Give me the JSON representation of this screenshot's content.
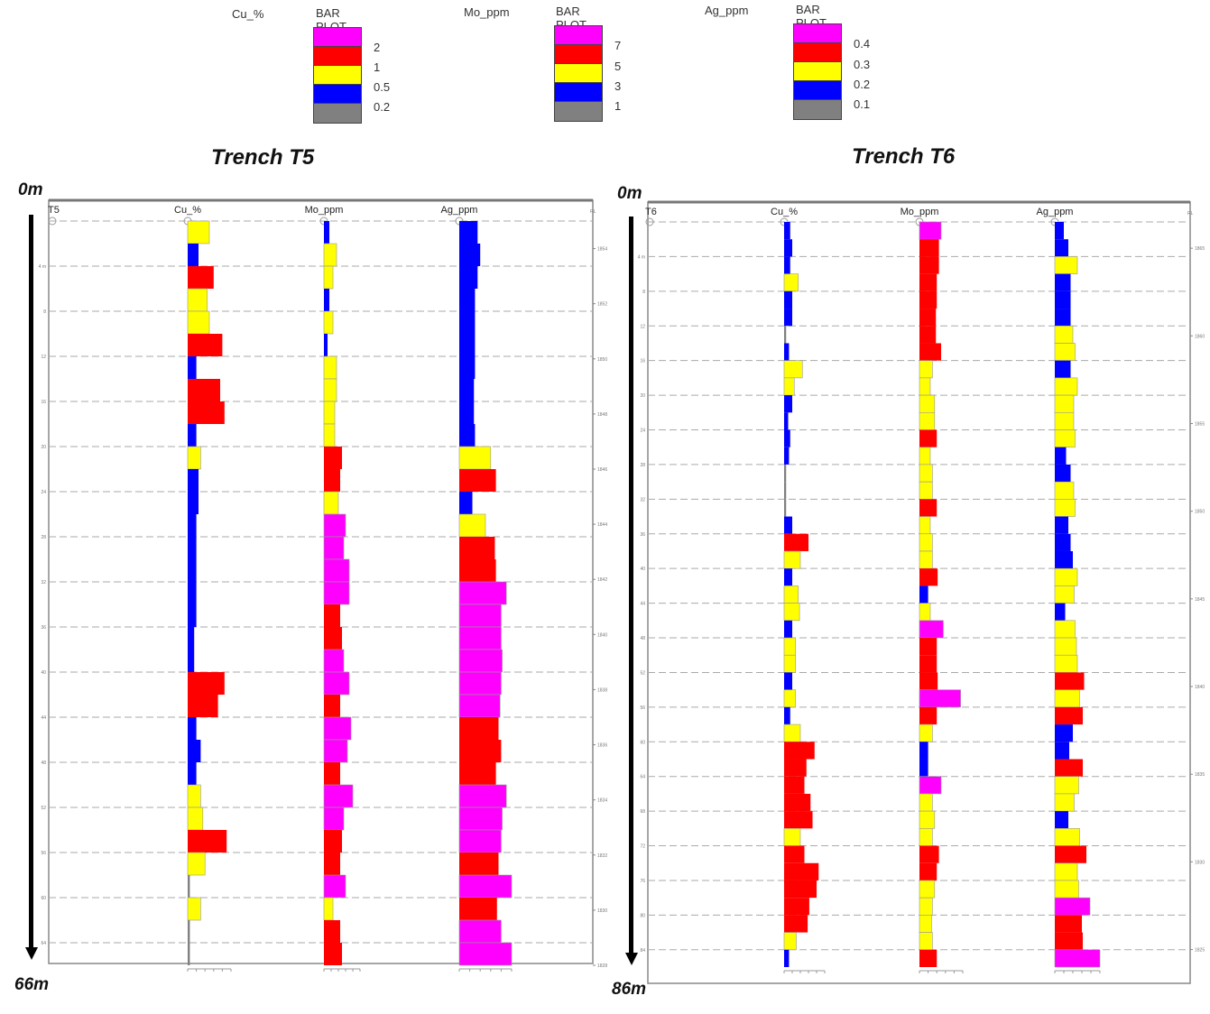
{
  "legend": {
    "bar_plot_label": "BAR PLOT",
    "items": [
      {
        "variable": "Cu_%",
        "thresholds": [
          "2",
          "1",
          "0.5",
          "0.2"
        ]
      },
      {
        "variable": "Mo_ppm",
        "thresholds": [
          "7",
          "5",
          "3",
          "1"
        ]
      },
      {
        "variable": "Ag_ppm",
        "thresholds": [
          "0.4",
          "0.3",
          "0.2",
          "0.1"
        ]
      }
    ],
    "colors": [
      "#ff00ff",
      "#ff0000",
      "#ffff00",
      "#0000ff",
      "#808080"
    ]
  },
  "chart_data": [
    {
      "type": "bar",
      "title": "Trench T5",
      "trench_id": "T5",
      "depth_top_label": "0m",
      "depth_bottom_label": "66m",
      "interval_m": 2,
      "depth_range": [
        0,
        66
      ],
      "depth_ticks": [
        4,
        8,
        12,
        16,
        20,
        24,
        28,
        32,
        36,
        40,
        44,
        48,
        52,
        56,
        60,
        64
      ],
      "rl_ticks": [
        1854,
        1852,
        1850,
        1848,
        1846,
        1844,
        1842,
        1840,
        1838,
        1836,
        1834,
        1832,
        1830,
        1828
      ],
      "rl_label": "RL",
      "class_colors": [
        "#808080",
        "#0000ff",
        "#ffff00",
        "#ff0000",
        "#ff00ff"
      ],
      "series": [
        {
          "name": "Cu_%",
          "classes": [
            2,
            1,
            3,
            2,
            2,
            3,
            1,
            3,
            3,
            1,
            2,
            1,
            1,
            1,
            1,
            1,
            1,
            1,
            1,
            1,
            3,
            3,
            1,
            1,
            1,
            2,
            2,
            3,
            2,
            0,
            2,
            0,
            0
          ],
          "widths": [
            0.5,
            0.25,
            0.6,
            0.45,
            0.5,
            0.8,
            0.2,
            0.75,
            0.85,
            0.2,
            0.3,
            0.25,
            0.25,
            0.2,
            0.2,
            0.2,
            0.2,
            0.2,
            0.15,
            0.15,
            0.85,
            0.7,
            0.2,
            0.3,
            0.2,
            0.3,
            0.35,
            0.9,
            0.4,
            0.05,
            0.3,
            0.05,
            0.05
          ]
        },
        {
          "name": "Mo_ppm",
          "classes": [
            1,
            2,
            2,
            1,
            2,
            1,
            2,
            2,
            2,
            2,
            3,
            3,
            2,
            4,
            4,
            4,
            4,
            3,
            3,
            4,
            4,
            3,
            4,
            4,
            3,
            4,
            4,
            3,
            3,
            4,
            2,
            3,
            3
          ],
          "widths": [
            0.15,
            0.35,
            0.25,
            0.15,
            0.25,
            0.1,
            0.35,
            0.35,
            0.3,
            0.3,
            0.5,
            0.45,
            0.4,
            0.6,
            0.55,
            0.7,
            0.7,
            0.45,
            0.5,
            0.55,
            0.7,
            0.45,
            0.75,
            0.65,
            0.45,
            0.8,
            0.55,
            0.5,
            0.45,
            0.6,
            0.25,
            0.45,
            0.5
          ]
        },
        {
          "name": "Ag_ppm",
          "classes": [
            1,
            1,
            1,
            1,
            1,
            1,
            1,
            1,
            1,
            1,
            2,
            3,
            1,
            2,
            3,
            3,
            4,
            4,
            4,
            4,
            4,
            4,
            3,
            3,
            3,
            4,
            4,
            4,
            3,
            4,
            3,
            4,
            4
          ],
          "widths": [
            0.35,
            0.4,
            0.35,
            0.3,
            0.3,
            0.3,
            0.3,
            0.28,
            0.28,
            0.3,
            0.6,
            0.7,
            0.25,
            0.5,
            0.68,
            0.7,
            0.9,
            0.8,
            0.8,
            0.82,
            0.8,
            0.78,
            0.75,
            0.8,
            0.7,
            0.9,
            0.82,
            0.8,
            0.75,
            1.0,
            0.72,
            0.8,
            1.0
          ]
        }
      ]
    },
    {
      "type": "bar",
      "title": "Trench T6",
      "trench_id": "T6",
      "depth_top_label": "0m",
      "depth_bottom_label": "86m",
      "interval_m": 2,
      "depth_range": [
        0,
        86
      ],
      "depth_ticks": [
        4,
        8,
        12,
        16,
        20,
        24,
        28,
        32,
        36,
        40,
        44,
        48,
        52,
        56,
        60,
        64,
        68,
        72,
        76,
        80,
        84
      ],
      "rl_ticks": [
        1865,
        1860,
        1855,
        1850,
        1845,
        1840,
        1835,
        1830,
        1825
      ],
      "rl_label": "RL",
      "class_colors": [
        "#808080",
        "#0000ff",
        "#ffff00",
        "#ff0000",
        "#ff00ff"
      ],
      "series": [
        {
          "name": "Cu_%",
          "classes": [
            1,
            1,
            1,
            2,
            1,
            1,
            0,
            1,
            2,
            2,
            1,
            1,
            1,
            1,
            0,
            0,
            0,
            1,
            3,
            2,
            1,
            2,
            2,
            1,
            2,
            2,
            1,
            2,
            1,
            2,
            3,
            3,
            3,
            3,
            3,
            2,
            3,
            3,
            3,
            3,
            3,
            2,
            1
          ],
          "widths": [
            0.15,
            0.2,
            0.15,
            0.35,
            0.2,
            0.2,
            0.05,
            0.12,
            0.45,
            0.25,
            0.2,
            0.1,
            0.15,
            0.12,
            0.05,
            0.05,
            0.05,
            0.2,
            0.6,
            0.4,
            0.2,
            0.35,
            0.38,
            0.2,
            0.28,
            0.28,
            0.2,
            0.28,
            0.15,
            0.4,
            0.75,
            0.55,
            0.5,
            0.65,
            0.7,
            0.4,
            0.5,
            0.85,
            0.8,
            0.62,
            0.58,
            0.3,
            0.12
          ]
        },
        {
          "name": "Mo_ppm",
          "classes": [
            4,
            3,
            3,
            3,
            3,
            3,
            3,
            3,
            2,
            2,
            2,
            2,
            3,
            2,
            2,
            2,
            3,
            2,
            2,
            2,
            3,
            1,
            2,
            4,
            3,
            3,
            3,
            4,
            3,
            2,
            1,
            1,
            4,
            2,
            2,
            2,
            3,
            3,
            2,
            2,
            2,
            2,
            3
          ],
          "widths": [
            0.5,
            0.45,
            0.45,
            0.4,
            0.4,
            0.38,
            0.38,
            0.5,
            0.3,
            0.25,
            0.35,
            0.35,
            0.4,
            0.25,
            0.3,
            0.3,
            0.4,
            0.25,
            0.3,
            0.3,
            0.42,
            0.2,
            0.25,
            0.55,
            0.4,
            0.4,
            0.42,
            0.95,
            0.4,
            0.3,
            0.2,
            0.2,
            0.5,
            0.3,
            0.35,
            0.3,
            0.45,
            0.4,
            0.35,
            0.3,
            0.28,
            0.3,
            0.4
          ]
        },
        {
          "name": "Ag_ppm",
          "classes": [
            1,
            1,
            2,
            1,
            1,
            1,
            2,
            2,
            1,
            2,
            2,
            2,
            2,
            1,
            1,
            2,
            2,
            1,
            1,
            1,
            2,
            2,
            1,
            2,
            2,
            2,
            3,
            2,
            3,
            1,
            1,
            3,
            2,
            2,
            1,
            2,
            3,
            2,
            2,
            4,
            3,
            3,
            4
          ],
          "widths": [
            0.2,
            0.3,
            0.5,
            0.35,
            0.35,
            0.35,
            0.4,
            0.45,
            0.35,
            0.5,
            0.42,
            0.42,
            0.45,
            0.25,
            0.35,
            0.42,
            0.45,
            0.3,
            0.35,
            0.4,
            0.5,
            0.43,
            0.23,
            0.45,
            0.48,
            0.5,
            0.65,
            0.55,
            0.62,
            0.4,
            0.32,
            0.62,
            0.53,
            0.43,
            0.3,
            0.55,
            0.7,
            0.5,
            0.53,
            0.78,
            0.6,
            0.62,
            1.0
          ]
        }
      ]
    }
  ]
}
